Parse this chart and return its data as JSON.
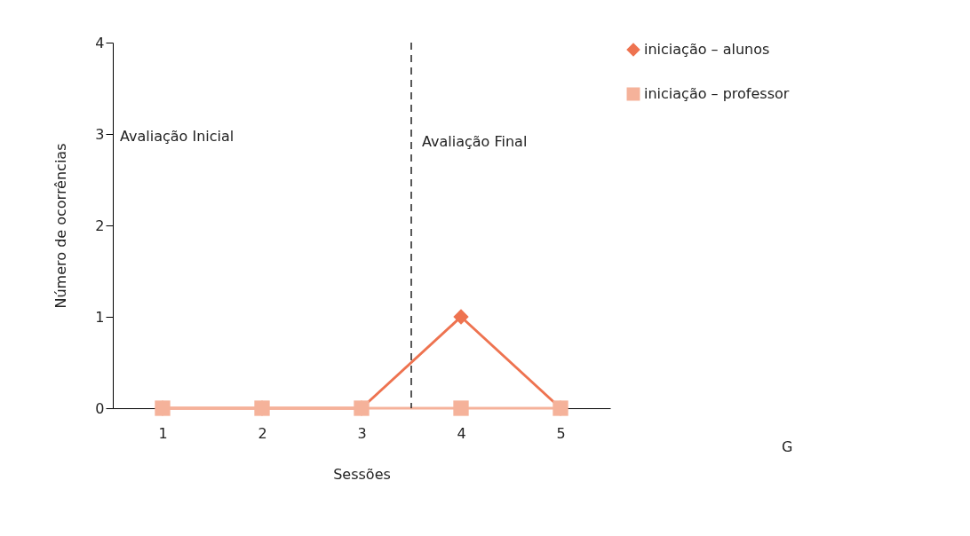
{
  "chart_data": {
    "type": "line",
    "xlabel": "Sessões",
    "ylabel": "Número de ocorrências",
    "x": [
      1,
      2,
      3,
      4,
      5
    ],
    "xlim": [
      0.5,
      5.5
    ],
    "xticks": [
      1,
      2,
      3,
      4,
      5
    ],
    "ylim": [
      0,
      4
    ],
    "yticks": [
      0,
      1,
      2,
      3,
      4
    ],
    "grid": false,
    "legend": "right",
    "line_style": "solid",
    "series": [
      {
        "name": "iniciação – alunos",
        "color": "#ee7350",
        "marker": "diamond",
        "values": [
          0,
          0,
          0,
          1,
          0
        ]
      },
      {
        "name": "iniciação – professor",
        "color": "#f5b29a",
        "marker": "square",
        "values": [
          0,
          0,
          0,
          0,
          0
        ]
      }
    ],
    "ref_lines": [
      {
        "axis": "x",
        "value": 3.5,
        "line_style": "dashed",
        "color": "#222222"
      }
    ],
    "annotations": [
      "Avaliação Inicial",
      "Avaliação Final",
      "G"
    ]
  }
}
